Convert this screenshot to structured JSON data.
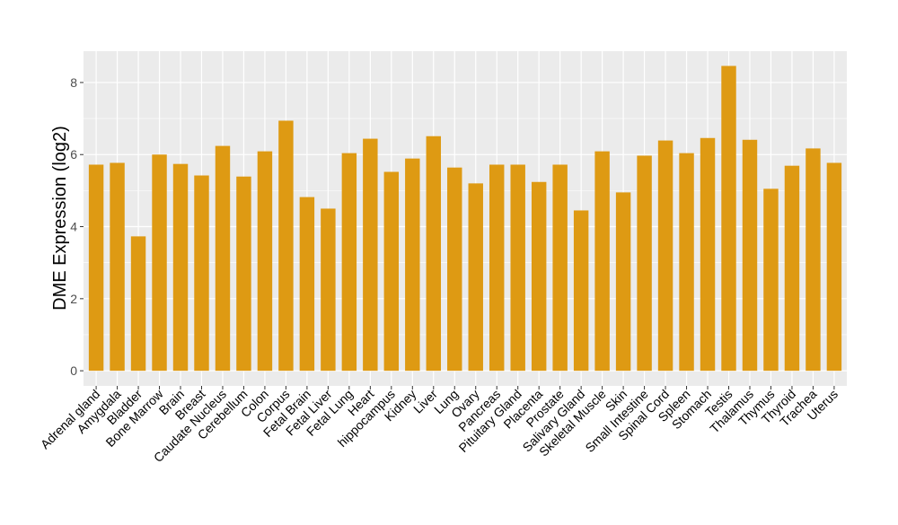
{
  "chart_data": {
    "type": "bar",
    "title": "",
    "xlabel": "",
    "ylabel": "DME Expression (log2)",
    "ylim": [
      -0.42,
      8.87
    ],
    "yticks": [
      0,
      2,
      4,
      6,
      8
    ],
    "grid": true,
    "bar_color": "#DE9A13",
    "panel_color": "#EBEBEB",
    "categories": [
      "Adrenal gland",
      "Amygdala",
      "Bladder",
      "Bone Marrow",
      "Brain",
      "Breast",
      "Caudate Nucleus",
      "Cerebellum",
      "Colon",
      "Corpus",
      "Fetal Brain",
      "Fetal Liver",
      "Fetal Lung",
      "Heart",
      "hippocampus",
      "Kidney",
      "Liver",
      "Lung",
      "Ovary",
      "Pancreas",
      "Pituitary Gland",
      "Placenta",
      "Prostate",
      "Salivary Gland",
      "Skeletal Muscle",
      "Skin",
      "Small Intestine",
      "Spinal Cord",
      "Spleen",
      "Stomach",
      "Testis",
      "Thalamus",
      "Thymus",
      "Thyroid",
      "Trachea",
      "Uterus"
    ],
    "values": [
      5.72,
      5.77,
      3.73,
      6.0,
      5.74,
      5.42,
      6.24,
      5.39,
      6.09,
      6.94,
      4.82,
      4.5,
      6.04,
      6.44,
      5.52,
      5.89,
      6.51,
      5.64,
      5.2,
      5.72,
      5.72,
      5.24,
      5.72,
      4.45,
      6.09,
      4.95,
      5.97,
      6.39,
      6.04,
      6.46,
      8.46,
      6.41,
      5.05,
      5.69,
      6.17,
      5.77
    ]
  }
}
